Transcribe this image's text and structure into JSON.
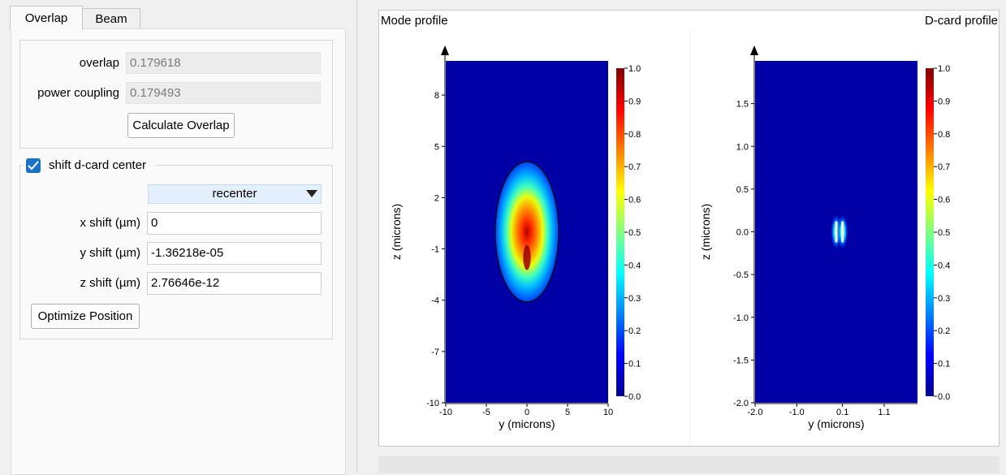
{
  "tabs": [
    {
      "label": "Overlap",
      "active": true
    },
    {
      "label": "Beam",
      "active": false
    }
  ],
  "overlap_group": {
    "overlap_label": "overlap",
    "overlap_value": "0.179618",
    "power_coupling_label": "power coupling",
    "power_coupling_value": "0.179493",
    "calculate_button": "Calculate Overlap"
  },
  "shift_group": {
    "checkbox_label": "shift d-card center",
    "checked": true,
    "mode_select": "recenter",
    "x_shift_label": "x shift (µm)",
    "x_shift_value": "0",
    "y_shift_label": "y shift (µm)",
    "y_shift_value": "-1.36218e-05",
    "z_shift_label": "z shift (µm)",
    "z_shift_value": "2.76646e-12",
    "optimize_button": "Optimize Position"
  },
  "plots": {
    "left_title": "Mode profile",
    "right_title": "D-card profile"
  },
  "chart_data": [
    {
      "type": "heatmap",
      "title": "Mode profile",
      "xlabel": "y (microns)",
      "ylabel": "z (microns)",
      "xlim": [
        -10,
        10
      ],
      "ylim": [
        -10,
        10
      ],
      "x_ticks": [
        "-10",
        "-5",
        "0",
        "5",
        "10"
      ],
      "y_ticks": [
        "-10",
        "-7",
        "-4",
        "-1",
        "2",
        "5",
        "8"
      ],
      "colorbar_ticks": [
        "0.0",
        "0.1",
        "0.2",
        "0.3",
        "0.4",
        "0.5",
        "0.6",
        "0.7",
        "0.8",
        "0.9",
        "1.0"
      ],
      "colormap": "jet",
      "peak": {
        "y": 0,
        "z": -1,
        "value": 1.0
      },
      "contour_ellipse": {
        "center_y": 0,
        "center_z": 0,
        "semi_y": 3.9,
        "semi_z": 4.1
      }
    },
    {
      "type": "heatmap",
      "title": "D-card profile",
      "xlabel": "y (microns)",
      "ylabel": "z (microns)",
      "xlim": [
        -2.0,
        1.9
      ],
      "ylim": [
        -2.0,
        2.0
      ],
      "x_ticks": [
        "-2.0",
        "-1.0",
        "0.1",
        "1.1"
      ],
      "y_ticks": [
        "-2.0",
        "-1.5",
        "-1.0",
        "-0.5",
        "0.0",
        "0.5",
        "1.0",
        "1.5"
      ],
      "colorbar_ticks": [
        "0.0",
        "0.1",
        "0.2",
        "0.3",
        "0.4",
        "0.5",
        "0.6",
        "0.7",
        "0.8",
        "0.9",
        "1.0"
      ],
      "colormap": "jet",
      "lobes": [
        {
          "y": -0.05,
          "z": 0.0
        },
        {
          "y": 0.1,
          "z": 0.0
        }
      ]
    }
  ]
}
